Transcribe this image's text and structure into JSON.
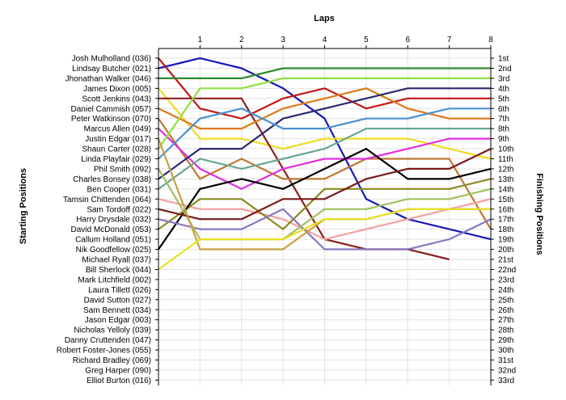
{
  "chart_data": {
    "type": "line",
    "title": "",
    "xlabel": "Laps",
    "ylabel_left": "Starting Positions",
    "ylabel_right": "Finishing Positions",
    "x_ticks": [
      1,
      2,
      3,
      4,
      5,
      6,
      7,
      8
    ],
    "xlim": [
      0,
      8
    ],
    "ylim": [
      1,
      33
    ],
    "grid": true,
    "left_labels": [
      "Josh Mulholland (036)",
      "Lindsay Butcher (021)",
      "Jhonathan Walker (046)",
      "James Dixon (005)",
      "Scott Jenkins (043)",
      "Daniel Cammish (057)",
      "Peter Watkinson (070)",
      "Marcus Allen (049)",
      "Justin Edgar (017)",
      "Shaun Carter (028)",
      "Linda Playfair (029)",
      "Phil Smith (092)",
      "Charles Bonsey (038)",
      "Ben Cooper (031)",
      "Tamsin Chittenden (064)",
      "Sam Tordoff (022)",
      "Harry Drysdale (032)",
      "David McDonald (053)",
      "Callum Holland (051)",
      "Nik Goodfellow (025)",
      "Michael Ryall (037)",
      "Bill Sherlock (044)",
      "Mark Litchfield (002)",
      "Laura Tillett (026)",
      "David Sutton (027)",
      "Sam Bennett (034)",
      "Jason Edgar (003)",
      "Nicholas Yelloly (039)",
      "Danny Cruttenden (047)",
      "Robert Foster-Jones (055)",
      "Richard Bradley (069)",
      "Greg Harper (090)",
      "Elliot Burton (016)"
    ],
    "right_labels": [
      "1st",
      "2nd",
      "3rd",
      "4th",
      "5th",
      "6th",
      "7th",
      "8th",
      "9th",
      "10th",
      "11th",
      "12th",
      "13th",
      "14th",
      "15th",
      "16th",
      "17th",
      "18th",
      "19th",
      "20th",
      "21st",
      "22nd",
      "23rd",
      "24th",
      "25th",
      "26th",
      "27th",
      "28th",
      "29th",
      "30th",
      "31st",
      "32nd",
      "33rd"
    ],
    "series": [
      {
        "color": "#1a1ab4",
        "positions": [
          2,
          1,
          2,
          4,
          7,
          15,
          17,
          18,
          19
        ]
      },
      {
        "color": "#c01818",
        "positions": [
          1,
          6,
          7,
          5,
          4,
          6,
          5,
          5,
          5
        ]
      },
      {
        "color": "#2e8b2e",
        "positions": [
          3,
          3,
          3,
          2,
          2,
          2,
          2,
          2,
          2
        ]
      },
      {
        "color": "#f0dc20",
        "positions": [
          4,
          9,
          9,
          10,
          9,
          9,
          9,
          10,
          11
        ]
      },
      {
        "color": "#8b2020",
        "positions": [
          5,
          5,
          5,
          12,
          19,
          20,
          20,
          21,
          null
        ]
      },
      {
        "color": "#e07818",
        "positions": [
          6,
          8,
          8,
          6,
          5,
          4,
          6,
          7,
          7
        ]
      },
      {
        "color": "#c07830",
        "positions": [
          7,
          13,
          11,
          13,
          13,
          11,
          11,
          11,
          18
        ]
      },
      {
        "color": "#e030e0",
        "positions": [
          8,
          12,
          14,
          12,
          11,
          11,
          10,
          9,
          9
        ]
      },
      {
        "color": "#90e040",
        "positions": [
          10,
          4,
          4,
          3,
          3,
          3,
          3,
          3,
          3
        ]
      },
      {
        "color": "#2a2a70",
        "positions": [
          13,
          10,
          10,
          7,
          6,
          5,
          4,
          4,
          4
        ]
      },
      {
        "color": "#4a90d0",
        "positions": [
          11,
          7,
          6,
          8,
          8,
          7,
          7,
          6,
          6
        ]
      },
      {
        "color": "#68a890",
        "positions": [
          14,
          11,
          12,
          11,
          10,
          8,
          8,
          8,
          8
        ]
      },
      {
        "color": "#f4a0a0",
        "positions": [
          15,
          16,
          16,
          17,
          19,
          18,
          17,
          16,
          15
        ]
      },
      {
        "color": "#8a8a20",
        "positions": [
          18,
          15,
          15,
          18,
          14,
          14,
          14,
          14,
          13
        ]
      },
      {
        "color": "#000000",
        "positions": [
          20,
          14,
          13,
          14,
          12,
          10,
          13,
          13,
          12
        ]
      },
      {
        "color": "#8878c0",
        "positions": [
          17,
          18,
          18,
          16,
          20,
          20,
          20,
          19,
          17
        ]
      },
      {
        "color": "#a0c060",
        "positions": [
          12,
          19,
          19,
          19,
          16,
          16,
          15,
          15,
          14
        ]
      },
      {
        "color": "#7a1a1a",
        "positions": [
          16,
          17,
          17,
          15,
          15,
          13,
          12,
          12,
          10
        ]
      },
      {
        "color": "#c8a040",
        "positions": [
          9,
          20,
          20,
          20,
          17,
          17,
          16,
          16,
          16
        ]
      },
      {
        "color": "#e8e020",
        "positions": [
          22,
          19,
          19,
          19,
          17,
          17,
          16,
          16,
          16
        ]
      }
    ]
  }
}
